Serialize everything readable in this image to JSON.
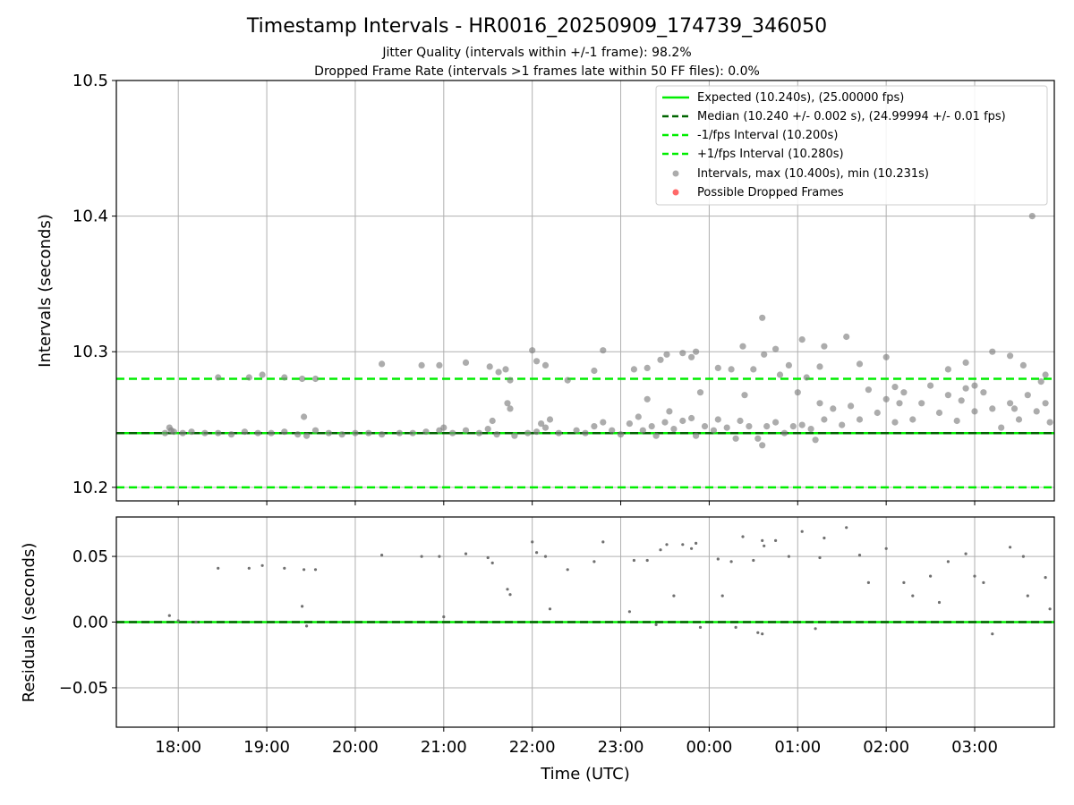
{
  "chart_data": {
    "type": "scatter",
    "title": "Timestamp Intervals - HR0016_20250909_174739_346050",
    "subtitle_1": "Jitter Quality (intervals within +/-1 frame): 98.2%",
    "subtitle_2": "Dropped Frame Rate (intervals >1 frames late within 50 FF files): 0.0%",
    "xlabel": "Time (UTC)",
    "x_ticks": [
      "18:00",
      "19:00",
      "20:00",
      "21:00",
      "22:00",
      "23:00",
      "00:00",
      "01:00",
      "02:00",
      "03:00"
    ],
    "x_range_hours": [
      17.3,
      27.9
    ],
    "grid": true,
    "top": {
      "ylabel": "Intervals (seconds)",
      "ylim": [
        10.19,
        10.5
      ],
      "y_ticks": [
        "10.2",
        "10.3",
        "10.4",
        "10.5"
      ],
      "y_tick_values": [
        10.2,
        10.3,
        10.4,
        10.5
      ],
      "expected": 10.24,
      "median": 10.24,
      "minus_1fps": 10.2,
      "plus_1fps": 10.28,
      "max_interval": 10.4,
      "min_interval": 10.231
    },
    "bottom": {
      "ylabel": "Residuals (seconds)",
      "ylim": [
        -0.08,
        0.08
      ],
      "y_ticks": [
        "0.05",
        "0.00",
        "−0.05"
      ],
      "y_tick_values": [
        0.05,
        0.0,
        -0.05
      ]
    },
    "legend": {
      "placement": "top-right",
      "entries": [
        {
          "label": "Expected (10.240s), (25.00000 fps)",
          "style": "solid",
          "color": "#00ee00"
        },
        {
          "label": "Median (10.240 +/- 0.002 s), (24.99994 +/- 0.01 fps)",
          "style": "dashed",
          "color": "#006400"
        },
        {
          "label": "-1/fps Interval (10.200s)",
          "style": "dashed",
          "color": "#00ee00"
        },
        {
          "label": "+1/fps Interval (10.280s)",
          "style": "dashed",
          "color": "#00ee00"
        },
        {
          "label": "Intervals, max (10.400s), min (10.231s)",
          "style": "marker",
          "color": "#808080"
        },
        {
          "label": "Possible Dropped Frames",
          "style": "marker",
          "color": "#ff4444"
        }
      ]
    },
    "series": [
      {
        "name": "Intervals, max (10.400s), min (10.231s)",
        "color": "#808080",
        "points": [
          [
            17.85,
            10.24
          ],
          [
            17.9,
            10.244
          ],
          [
            17.92,
            10.242
          ],
          [
            17.95,
            10.241
          ],
          [
            18.05,
            10.24
          ],
          [
            18.15,
            10.241
          ],
          [
            18.3,
            10.24
          ],
          [
            18.45,
            10.24
          ],
          [
            18.6,
            10.239
          ],
          [
            18.75,
            10.241
          ],
          [
            18.9,
            10.24
          ],
          [
            19.05,
            10.24
          ],
          [
            19.2,
            10.241
          ],
          [
            19.35,
            10.239
          ],
          [
            19.42,
            10.252
          ],
          [
            19.45,
            10.238
          ],
          [
            19.55,
            10.242
          ],
          [
            19.7,
            10.24
          ],
          [
            19.85,
            10.239
          ],
          [
            20.0,
            10.24
          ],
          [
            20.15,
            10.24
          ],
          [
            20.3,
            10.239
          ],
          [
            20.5,
            10.24
          ],
          [
            20.65,
            10.24
          ],
          [
            20.8,
            10.241
          ],
          [
            20.95,
            10.242
          ],
          [
            21.0,
            10.244
          ],
          [
            21.1,
            10.24
          ],
          [
            21.25,
            10.242
          ],
          [
            21.4,
            10.24
          ],
          [
            21.5,
            10.243
          ],
          [
            21.55,
            10.249
          ],
          [
            21.6,
            10.239
          ],
          [
            21.72,
            10.262
          ],
          [
            21.75,
            10.258
          ],
          [
            21.8,
            10.238
          ],
          [
            21.95,
            10.24
          ],
          [
            22.05,
            10.241
          ],
          [
            22.1,
            10.247
          ],
          [
            22.15,
            10.244
          ],
          [
            22.2,
            10.25
          ],
          [
            22.3,
            10.24
          ],
          [
            22.5,
            10.242
          ],
          [
            22.6,
            10.24
          ],
          [
            22.7,
            10.245
          ],
          [
            22.8,
            10.248
          ],
          [
            22.9,
            10.242
          ],
          [
            23.0,
            10.239
          ],
          [
            23.1,
            10.247
          ],
          [
            23.2,
            10.252
          ],
          [
            23.25,
            10.242
          ],
          [
            23.35,
            10.245
          ],
          [
            23.4,
            10.238
          ],
          [
            23.5,
            10.248
          ],
          [
            23.55,
            10.256
          ],
          [
            23.6,
            10.243
          ],
          [
            23.7,
            10.249
          ],
          [
            23.8,
            10.251
          ],
          [
            23.85,
            10.238
          ],
          [
            23.95,
            10.245
          ],
          [
            24.05,
            10.242
          ],
          [
            24.1,
            10.25
          ],
          [
            24.2,
            10.244
          ],
          [
            24.3,
            10.236
          ],
          [
            24.35,
            10.249
          ],
          [
            24.45,
            10.245
          ],
          [
            24.55,
            10.236
          ],
          [
            24.6,
            10.231
          ],
          [
            24.65,
            10.245
          ],
          [
            24.75,
            10.248
          ],
          [
            24.85,
            10.24
          ],
          [
            24.95,
            10.245
          ],
          [
            25.05,
            10.246
          ],
          [
            25.15,
            10.243
          ],
          [
            25.2,
            10.235
          ],
          [
            25.3,
            10.25
          ],
          [
            25.4,
            10.258
          ],
          [
            25.5,
            10.246
          ],
          [
            25.6,
            10.26
          ],
          [
            25.7,
            10.25
          ],
          [
            25.8,
            10.272
          ],
          [
            25.9,
            10.255
          ],
          [
            26.0,
            10.265
          ],
          [
            26.1,
            10.248
          ],
          [
            26.2,
            10.27
          ],
          [
            26.3,
            10.25
          ],
          [
            26.4,
            10.262
          ],
          [
            26.5,
            10.275
          ],
          [
            26.6,
            10.255
          ],
          [
            26.7,
            10.268
          ],
          [
            26.8,
            10.249
          ],
          [
            26.9,
            10.273
          ],
          [
            27.0,
            10.256
          ],
          [
            27.1,
            10.27
          ],
          [
            27.2,
            10.258
          ],
          [
            27.3,
            10.244
          ],
          [
            27.4,
            10.262
          ],
          [
            27.5,
            10.25
          ],
          [
            27.6,
            10.268
          ],
          [
            27.7,
            10.256
          ],
          [
            27.8,
            10.262
          ],
          [
            27.85,
            10.248
          ],
          [
            23.3,
            10.265
          ],
          [
            23.9,
            10.27
          ],
          [
            24.4,
            10.268
          ],
          [
            25.0,
            10.27
          ],
          [
            25.25,
            10.262
          ],
          [
            26.15,
            10.262
          ],
          [
            26.85,
            10.264
          ],
          [
            27.45,
            10.258
          ],
          [
            18.45,
            10.281
          ],
          [
            18.8,
            10.281
          ],
          [
            18.95,
            10.283
          ],
          [
            19.2,
            10.281
          ],
          [
            19.4,
            10.28
          ],
          [
            19.55,
            10.28
          ],
          [
            20.3,
            10.291
          ],
          [
            20.75,
            10.29
          ],
          [
            20.95,
            10.29
          ],
          [
            21.25,
            10.292
          ],
          [
            21.52,
            10.289
          ],
          [
            21.62,
            10.285
          ],
          [
            21.7,
            10.287
          ],
          [
            21.75,
            10.279
          ],
          [
            22.0,
            10.301
          ],
          [
            22.05,
            10.293
          ],
          [
            22.15,
            10.29
          ],
          [
            22.4,
            10.279
          ],
          [
            22.7,
            10.286
          ],
          [
            22.8,
            10.301
          ],
          [
            23.15,
            10.287
          ],
          [
            23.3,
            10.288
          ],
          [
            23.45,
            10.294
          ],
          [
            23.52,
            10.298
          ],
          [
            23.7,
            10.299
          ],
          [
            23.8,
            10.296
          ],
          [
            23.85,
            10.3
          ],
          [
            24.1,
            10.288
          ],
          [
            24.25,
            10.287
          ],
          [
            24.38,
            10.304
          ],
          [
            24.5,
            10.287
          ],
          [
            24.6,
            10.325
          ],
          [
            24.62,
            10.298
          ],
          [
            24.75,
            10.302
          ],
          [
            24.8,
            10.283
          ],
          [
            24.9,
            10.29
          ],
          [
            25.05,
            10.309
          ],
          [
            25.1,
            10.281
          ],
          [
            25.25,
            10.289
          ],
          [
            25.3,
            10.304
          ],
          [
            25.55,
            10.311
          ],
          [
            25.7,
            10.291
          ],
          [
            26.0,
            10.296
          ],
          [
            26.1,
            10.274
          ],
          [
            26.7,
            10.287
          ],
          [
            26.9,
            10.292
          ],
          [
            27.0,
            10.275
          ],
          [
            27.2,
            10.3
          ],
          [
            27.4,
            10.297
          ],
          [
            27.55,
            10.29
          ],
          [
            27.65,
            10.4
          ],
          [
            27.75,
            10.278
          ],
          [
            27.8,
            10.283
          ]
        ]
      }
    ],
    "residuals": {
      "color": "#707070",
      "points": [
        [
          17.9,
          0.005
        ],
        [
          18.0,
          0.001
        ],
        [
          18.2,
          0.0
        ],
        [
          18.45,
          0.041
        ],
        [
          18.8,
          0.041
        ],
        [
          18.95,
          0.043
        ],
        [
          19.2,
          0.041
        ],
        [
          19.4,
          0.012
        ],
        [
          19.42,
          0.04
        ],
        [
          19.55,
          0.04
        ],
        [
          19.45,
          -0.003
        ],
        [
          20.3,
          0.051
        ],
        [
          20.75,
          0.05
        ],
        [
          20.95,
          0.05
        ],
        [
          21.0,
          0.004
        ],
        [
          21.25,
          0.052
        ],
        [
          21.5,
          0.049
        ],
        [
          21.55,
          0.045
        ],
        [
          21.72,
          0.025
        ],
        [
          21.75,
          0.021
        ],
        [
          22.0,
          0.061
        ],
        [
          22.05,
          0.053
        ],
        [
          22.15,
          0.05
        ],
        [
          22.2,
          0.01
        ],
        [
          22.4,
          0.04
        ],
        [
          22.7,
          0.046
        ],
        [
          22.8,
          0.061
        ],
        [
          23.1,
          0.008
        ],
        [
          23.15,
          0.047
        ],
        [
          23.3,
          0.047
        ],
        [
          23.45,
          0.055
        ],
        [
          23.52,
          0.059
        ],
        [
          23.6,
          0.02
        ],
        [
          23.7,
          0.059
        ],
        [
          23.8,
          0.056
        ],
        [
          23.85,
          0.06
        ],
        [
          24.1,
          0.048
        ],
        [
          24.15,
          0.02
        ],
        [
          24.25,
          0.046
        ],
        [
          24.38,
          0.065
        ],
        [
          24.5,
          0.047
        ],
        [
          24.6,
          0.062
        ],
        [
          24.62,
          0.058
        ],
        [
          24.75,
          0.062
        ],
        [
          24.6,
          -0.009
        ],
        [
          24.9,
          0.05
        ],
        [
          25.05,
          0.069
        ],
        [
          25.25,
          0.049
        ],
        [
          25.3,
          0.064
        ],
        [
          25.55,
          0.072
        ],
        [
          25.7,
          0.051
        ],
        [
          25.8,
          0.03
        ],
        [
          26.0,
          0.056
        ],
        [
          26.2,
          0.03
        ],
        [
          26.5,
          0.035
        ],
        [
          26.7,
          0.046
        ],
        [
          26.9,
          0.052
        ],
        [
          27.0,
          0.035
        ],
        [
          27.2,
          -0.009
        ],
        [
          27.4,
          0.057
        ],
        [
          27.55,
          0.05
        ],
        [
          27.8,
          0.034
        ],
        [
          27.85,
          0.01
        ],
        [
          23.4,
          -0.002
        ],
        [
          23.9,
          -0.004
        ],
        [
          24.3,
          -0.004
        ],
        [
          24.55,
          -0.008
        ],
        [
          25.2,
          -0.005
        ],
        [
          26.3,
          0.02
        ],
        [
          26.6,
          0.015
        ],
        [
          27.1,
          0.03
        ],
        [
          27.6,
          0.02
        ]
      ]
    }
  }
}
